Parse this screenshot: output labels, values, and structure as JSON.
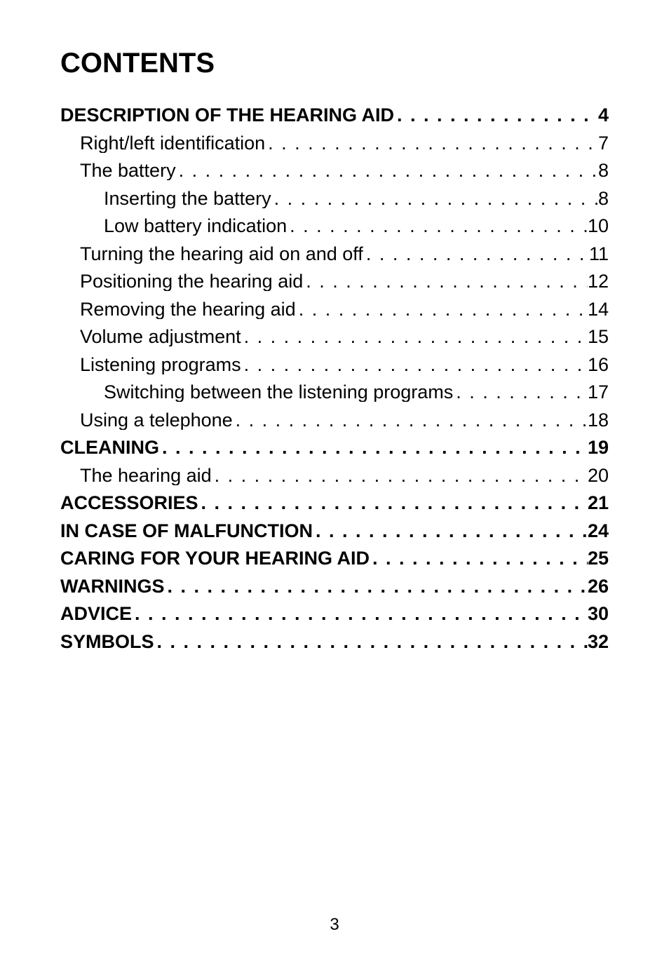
{
  "title": "CONTENTS",
  "page_number": "3",
  "text_color": "#000000",
  "background_color": "#ffffff",
  "title_fontsize": 40,
  "body_fontsize": 27,
  "toc": [
    {
      "label": "DESCRIPTION OF THE HEARING AID",
      "page": "4",
      "indent": 0,
      "bold": true
    },
    {
      "label": "Right/left identification",
      "page": "7",
      "indent": 1,
      "bold": false
    },
    {
      "label": "The battery",
      "page": "8",
      "indent": 1,
      "bold": false
    },
    {
      "label": "Inserting the battery",
      "page": "8",
      "indent": 2,
      "bold": false
    },
    {
      "label": "Low battery indication",
      "page": "10",
      "indent": 2,
      "bold": false
    },
    {
      "label": "Turning the hearing aid on and off",
      "page": "11",
      "indent": 1,
      "bold": false
    },
    {
      "label": "Positioning the hearing aid",
      "page": "12",
      "indent": 1,
      "bold": false
    },
    {
      "label": "Removing the hearing aid",
      "page": "14",
      "indent": 1,
      "bold": false
    },
    {
      "label": "Volume adjustment",
      "page": "15",
      "indent": 1,
      "bold": false
    },
    {
      "label": "Listening programs",
      "page": "16",
      "indent": 1,
      "bold": false
    },
    {
      "label": "Switching between the listening programs",
      "page": "17",
      "indent": 2,
      "bold": false
    },
    {
      "label": "Using a telephone",
      "page": "18",
      "indent": 1,
      "bold": false
    },
    {
      "label": "CLEANING",
      "page": "19",
      "indent": 0,
      "bold": true
    },
    {
      "label": "The hearing aid",
      "page": "20",
      "indent": 1,
      "bold": false
    },
    {
      "label": "ACCESSORIES",
      "page": "21",
      "indent": 0,
      "bold": true
    },
    {
      "label": "IN CASE OF MALFUNCTION",
      "page": "24",
      "indent": 0,
      "bold": true
    },
    {
      "label": "CARING FOR YOUR HEARING AID",
      "page": "25",
      "indent": 0,
      "bold": true
    },
    {
      "label": "WARNINGS",
      "page": "26",
      "indent": 0,
      "bold": true
    },
    {
      "label": "ADVICE",
      "page": "30",
      "indent": 0,
      "bold": true
    },
    {
      "label": "SYMBOLS",
      "page": "32",
      "indent": 0,
      "bold": true
    }
  ]
}
